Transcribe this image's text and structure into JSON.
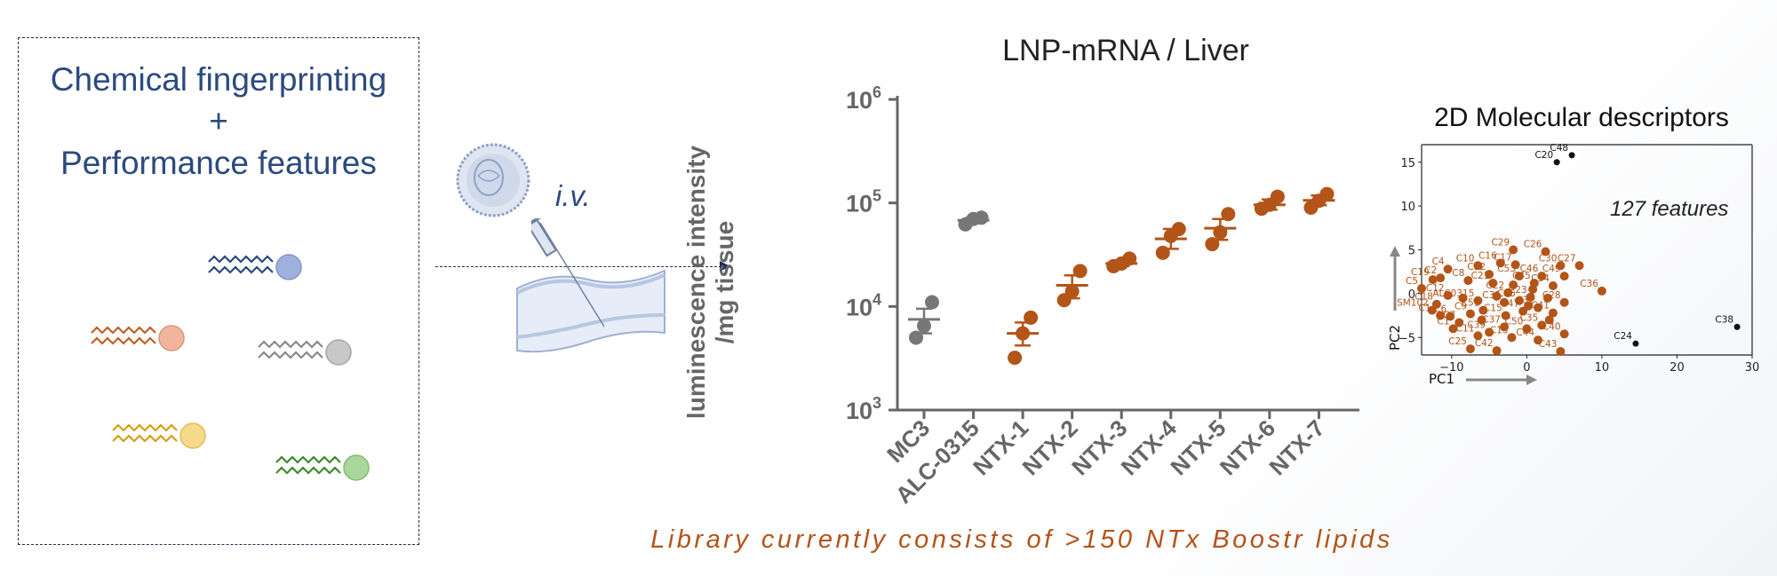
{
  "left_panel": {
    "line1": "Chemical fingerprinting",
    "line2": "+",
    "line3": "Performance features",
    "lipid_colors": [
      "#2b4a7e",
      "#c0602a",
      "#8a8a8a",
      "#d4a017",
      "#3f8a2c"
    ],
    "icons": [
      "lipid-icon-blue",
      "lipid-icon-orange",
      "lipid-icon-grey",
      "lipid-icon-yellow",
      "lipid-icon-green"
    ]
  },
  "injection": {
    "route_label": "i.v.",
    "icons": [
      "lipid-nanoparticle-icon",
      "syringe-icon",
      "blood-vessel-icon"
    ]
  },
  "footer": "Library currently consists of >150 NTx Boostr lipids",
  "colors": {
    "grey": "#777777",
    "orange": "#b35418",
    "navy": "#1f2d55"
  },
  "chart_data": [
    {
      "type": "scatter",
      "title": "LNP-mRNA / Liver",
      "ylabel": "luminescence intensity /mg tissue",
      "ylabel_lines": [
        "luminescence intensity",
        "/mg tissue"
      ],
      "yscale": "log",
      "ylim": [
        1000,
        1000000
      ],
      "yticks": [
        {
          "value": 1000,
          "base": "10",
          "exp": "3"
        },
        {
          "value": 10000,
          "base": "10",
          "exp": "4"
        },
        {
          "value": 100000,
          "base": "10",
          "exp": "5"
        },
        {
          "value": 1000000,
          "base": "10",
          "exp": "6"
        }
      ],
      "categories": [
        "MC3",
        "ALC-0315",
        "NTX-1",
        "NTX-2",
        "NTX-3",
        "NTX-4",
        "NTX-5",
        "NTX-6",
        "NTX-7"
      ],
      "category_colors": [
        "#777777",
        "#777777",
        "#b35418",
        "#b35418",
        "#b35418",
        "#b35418",
        "#b35418",
        "#b35418",
        "#b35418"
      ],
      "points": [
        [
          5000,
          6500,
          11000
        ],
        [
          62000,
          70000,
          72000
        ],
        [
          3200,
          5500,
          7800
        ],
        [
          11500,
          14000,
          22000
        ],
        [
          24500,
          26000,
          29000
        ],
        [
          33000,
          48000,
          56000
        ],
        [
          40000,
          52000,
          78000
        ],
        [
          88000,
          96000,
          115000
        ],
        [
          90000,
          105000,
          122000
        ]
      ],
      "means": [
        7500,
        68000,
        5500,
        16000,
        26000,
        45000,
        57000,
        96000,
        106000
      ],
      "sem": [
        [
          5500,
          9500
        ],
        [
          65000,
          72000
        ],
        [
          4200,
          7000
        ],
        [
          12000,
          20000
        ],
        [
          24500,
          27500
        ],
        [
          36000,
          56000
        ],
        [
          44000,
          70000
        ],
        [
          86000,
          108000
        ],
        [
          95000,
          118000
        ]
      ],
      "grid": false
    },
    {
      "type": "scatter",
      "title": "2D Molecular descriptors",
      "annotation": "127 features",
      "xlabel": "PC1",
      "ylabel": "PC2",
      "xlim": [
        -14,
        30
      ],
      "ylim": [
        -7,
        17
      ],
      "xticks": [
        {
          "v": -10,
          "l": "−10"
        },
        {
          "v": 0,
          "l": "0"
        },
        {
          "v": 10,
          "l": "10"
        },
        {
          "v": 20,
          "l": "20"
        },
        {
          "v": 30,
          "l": "30"
        }
      ],
      "yticks": [
        {
          "v": -5,
          "l": "−5"
        },
        {
          "v": 0,
          "l": "0"
        },
        {
          "v": 5,
          "l": "5"
        },
        {
          "v": 10,
          "l": "10"
        },
        {
          "v": 15,
          "l": "15"
        }
      ],
      "grid": false,
      "highlight_color": "#b35418",
      "outlier_color": "#111111",
      "points": [
        {
          "x": 4.0,
          "y": 15.0,
          "label": "C20",
          "color": "#111111"
        },
        {
          "x": 6.0,
          "y": 15.8,
          "label": "C48",
          "color": "#111111"
        },
        {
          "x": 14.5,
          "y": -5.7,
          "label": "C24",
          "color": "#111111"
        },
        {
          "x": 28.0,
          "y": -3.8,
          "label": "C38",
          "color": "#111111"
        },
        {
          "x": -12.5,
          "y": 1.6,
          "label": "C19",
          "color": "#b35418"
        },
        {
          "x": -10.5,
          "y": 2.8,
          "label": "C4",
          "color": "#b35418"
        },
        {
          "x": -11.5,
          "y": 1.8,
          "label": "C2",
          "color": "#b35418"
        },
        {
          "x": -14.0,
          "y": 0.6,
          "label": "C5",
          "color": "#b35418"
        },
        {
          "x": -10.5,
          "y": -0.2,
          "label": "C12",
          "color": "#b35418"
        },
        {
          "x": -12.0,
          "y": -1.2,
          "label": "C18",
          "color": "#b35418"
        },
        {
          "x": -12.6,
          "y": -1.9,
          "label": "SM102",
          "color": "#b35418"
        },
        {
          "x": -11.5,
          "y": -2.5,
          "label": "C14",
          "color": "#b35418"
        },
        {
          "x": -10.2,
          "y": -2.6,
          "label": "C6",
          "color": "#b35418"
        },
        {
          "x": -9.0,
          "y": -3.3,
          "label": "C7",
          "color": "#b35418"
        },
        {
          "x": -7.5,
          "y": -2.3,
          "label": "C9",
          "color": "#b35418"
        },
        {
          "x": -9.8,
          "y": -4.0,
          "label": "C1",
          "color": "#b35418"
        },
        {
          "x": -6.5,
          "y": -4.8,
          "label": "C11",
          "color": "#b35418"
        },
        {
          "x": -7.5,
          "y": -6.3,
          "label": "C25",
          "color": "#b35418"
        },
        {
          "x": -6.5,
          "y": 3.2,
          "label": "C10",
          "color": "#b35418"
        },
        {
          "x": -7.8,
          "y": 1.5,
          "label": "C8",
          "color": "#b35418"
        },
        {
          "x": -4.5,
          "y": 1.2,
          "label": "C21",
          "color": "#b35418"
        },
        {
          "x": -5.0,
          "y": 2.2,
          "label": "C52",
          "color": "#b35418"
        },
        {
          "x": -3.5,
          "y": 3.5,
          "label": "C16",
          "color": "#b35418"
        },
        {
          "x": -1.5,
          "y": 3.3,
          "label": "C17",
          "color": "#b35418"
        },
        {
          "x": -1.8,
          "y": 5.0,
          "label": "C29",
          "color": "#b35418"
        },
        {
          "x": 2.5,
          "y": 4.8,
          "label": "C26",
          "color": "#b35418"
        },
        {
          "x": -1.0,
          "y": 2.0,
          "label": "C53",
          "color": "#b35418"
        },
        {
          "x": 1.0,
          "y": 1.2,
          "label": "C45",
          "color": "#b35418"
        },
        {
          "x": 2.0,
          "y": 2.0,
          "label": "C46",
          "color": "#b35418"
        },
        {
          "x": 4.5,
          "y": 3.2,
          "label": "C30",
          "color": "#b35418"
        },
        {
          "x": 7.0,
          "y": 3.2,
          "label": "C27",
          "color": "#b35418"
        },
        {
          "x": 5.0,
          "y": 2.0,
          "label": "C49",
          "color": "#b35418"
        },
        {
          "x": 3.5,
          "y": 0.9,
          "label": "C34",
          "color": "#b35418"
        },
        {
          "x": -2.5,
          "y": 0.1,
          "label": "C22",
          "color": "#b35418"
        },
        {
          "x": -6.5,
          "y": -0.8,
          "label": "ALC0315",
          "color": "#b35418"
        },
        {
          "x": -3.0,
          "y": -1.0,
          "label": "C31",
          "color": "#b35418"
        },
        {
          "x": -1.0,
          "y": -0.8,
          "label": "C55",
          "color": "#b35418"
        },
        {
          "x": 0.5,
          "y": -0.4,
          "label": "C23",
          "color": "#b35418"
        },
        {
          "x": -5.8,
          "y": -1.9,
          "label": "C51",
          "color": "#b35418"
        },
        {
          "x": -2.8,
          "y": -2.5,
          "label": "C15",
          "color": "#b35418"
        },
        {
          "x": -0.5,
          "y": -2.0,
          "label": "C47",
          "color": "#b35418"
        },
        {
          "x": 1.5,
          "y": -1.6,
          "label": "C32",
          "color": "#b35418"
        },
        {
          "x": 5.0,
          "y": -1.0,
          "label": "C28",
          "color": "#b35418"
        },
        {
          "x": 3.5,
          "y": -2.2,
          "label": "C41",
          "color": "#b35418"
        },
        {
          "x": 10.0,
          "y": 0.3,
          "label": "C36",
          "color": "#b35418"
        },
        {
          "x": -3.0,
          "y": -3.8,
          "label": "C37",
          "color": "#b35418"
        },
        {
          "x": -5.0,
          "y": -4.4,
          "label": "C39",
          "color": "#b35418"
        },
        {
          "x": -2.0,
          "y": -5.0,
          "label": "C13",
          "color": "#b35418"
        },
        {
          "x": 0.0,
          "y": -4.0,
          "label": "C50",
          "color": "#b35418"
        },
        {
          "x": 2.0,
          "y": -3.6,
          "label": "C35",
          "color": "#b35418"
        },
        {
          "x": 1.5,
          "y": -5.3,
          "label": "C44",
          "color": "#b35418"
        },
        {
          "x": 5.0,
          "y": -4.6,
          "label": "C40",
          "color": "#b35418"
        },
        {
          "x": -4.0,
          "y": -6.5,
          "label": "C42",
          "color": "#b35418"
        },
        {
          "x": 4.5,
          "y": -6.6,
          "label": "C43",
          "color": "#b35418"
        },
        {
          "x": -8.5,
          "y": -0.5,
          "label": "",
          "color": "#b35418"
        },
        {
          "x": -4.0,
          "y": -0.3,
          "label": "",
          "color": "#b35418"
        },
        {
          "x": 0.8,
          "y": 0.5,
          "label": "",
          "color": "#b35418"
        },
        {
          "x": 2.8,
          "y": -0.5,
          "label": "",
          "color": "#b35418"
        },
        {
          "x": -1.8,
          "y": 1.0,
          "label": "",
          "color": "#b35418"
        },
        {
          "x": 3.0,
          "y": -3.0,
          "label": "",
          "color": "#b35418"
        },
        {
          "x": -6.0,
          "y": -3.0,
          "label": "",
          "color": "#b35418"
        },
        {
          "x": 0.2,
          "y": -1.4,
          "label": "",
          "color": "#b35418"
        }
      ]
    }
  ]
}
